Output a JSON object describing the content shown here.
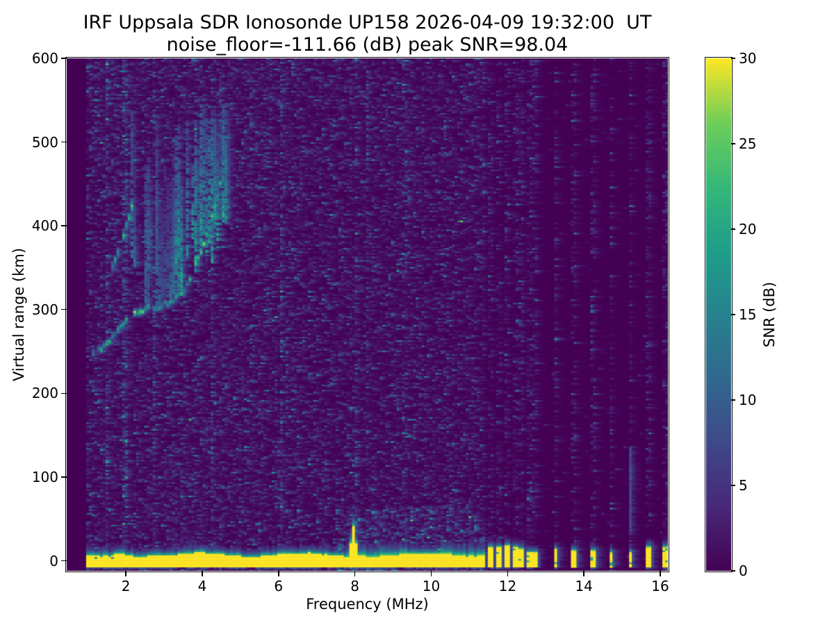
{
  "chart_data": {
    "type": "heatmap",
    "title_line1": "IRF Uppsala SDR Ionosonde UP158 2026-04-09 19:32:00  UT",
    "title_line2": "noise_floor=-111.66 (dB) peak SNR=98.04",
    "station": "UP158",
    "timestamp_ut": "2026-04-09 19:32:00",
    "noise_floor_db": -111.66,
    "peak_snr_db": 98.04,
    "xlabel": "Frequency (MHz)",
    "ylabel": "Virtual range (km)",
    "xlim": [
      0.45,
      16.2
    ],
    "ylim": [
      -12,
      600
    ],
    "xticks": [
      2,
      4,
      6,
      8,
      10,
      12,
      14,
      16
    ],
    "yticks": [
      0,
      100,
      200,
      300,
      400,
      500,
      600
    ],
    "grid": false,
    "colorbar": {
      "label": "SNR (dB)",
      "ticks": [
        0,
        5,
        10,
        15,
        20,
        25,
        30
      ],
      "vmin": 0,
      "vmax": 30,
      "colormap": "viridis",
      "color_low": "#440154",
      "color_high": "#fde725"
    },
    "data_model": {
      "seed": 11,
      "sweep_start_mhz": 0.95,
      "sweep_end_mhz": 11.42,
      "step_frequencies_mhz": [
        11.57,
        11.77,
        11.98,
        12.18,
        12.37,
        12.55,
        12.73,
        13.26,
        13.73,
        14.22,
        14.71,
        15.22,
        15.71,
        16.11
      ],
      "ground_band": {
        "km_low": -7,
        "km_high": 6,
        "halo_km": 9,
        "enhanced_halo_ranges_mhz": [
          [
            7.8,
            9.35
          ],
          [
            10.25,
            11.42
          ]
        ],
        "patchy_below_mhz": 1.7,
        "spike": {
          "mhz": 7.97,
          "km_top": 41
        }
      },
      "traces": [
        {
          "name": "F-trace",
          "points": [
            [
              1.15,
              246
            ],
            [
              1.35,
              254
            ],
            [
              1.55,
              263
            ],
            [
              1.75,
              273
            ],
            [
              1.95,
              284
            ],
            [
              2.15,
              293
            ],
            [
              2.4,
              299
            ],
            [
              2.7,
              302
            ],
            [
              3.0,
              305
            ],
            [
              3.2,
              310
            ],
            [
              3.4,
              317
            ],
            [
              3.6,
              330
            ],
            [
              3.8,
              350
            ],
            [
              4.0,
              374
            ],
            [
              4.2,
              400
            ],
            [
              4.35,
              425
            ],
            [
              4.5,
              455
            ]
          ],
          "thickness_km": 9
        },
        {
          "name": "upper-branch",
          "points": [
            [
              1.62,
              348
            ],
            [
              1.78,
              365
            ],
            [
              1.92,
              386
            ],
            [
              2.05,
              405
            ],
            [
              2.18,
              428
            ]
          ],
          "thickness_km": 11
        }
      ],
      "spread_zone": {
        "f_range_mhz": [
          1.95,
          4.75
        ],
        "bottom_km": [
          [
            1.95,
            345
          ],
          [
            2.6,
            325
          ],
          [
            3.3,
            308
          ],
          [
            3.8,
            330
          ],
          [
            4.3,
            355
          ],
          [
            4.75,
            400
          ]
        ],
        "bright_range_mhz": [
          3.25,
          4.65
        ],
        "max_top_km": 545
      },
      "interference_stripes": [
        {
          "mhz": 1.48,
          "strength": 1.4
        },
        {
          "mhz": 1.98,
          "strength": 2.0
        },
        {
          "mhz": 2.72,
          "strength": 1.2
        },
        {
          "mhz": 4.28,
          "strength": 1.1
        },
        {
          "mhz": 6.08,
          "strength": 1.5
        },
        {
          "mhz": 8.05,
          "strength": 1.2
        },
        {
          "mhz": 8.32,
          "strength": 1.2
        },
        {
          "mhz": 9.3,
          "strength": 1.0
        },
        {
          "mhz": 15.22,
          "strength": 1.0,
          "segment_km": [
            35,
            135
          ]
        }
      ]
    }
  }
}
